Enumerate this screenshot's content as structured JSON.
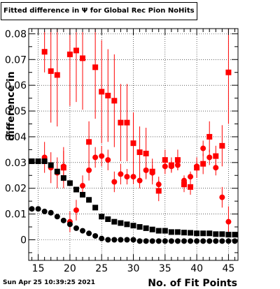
{
  "title": "Fitted difference in Ψ for Global Rec Pion NoHits",
  "timestamp": "Sun Apr 25 10:39:25 2021",
  "chart_data": {
    "type": "scatter",
    "title": "Fitted difference in Ψ for Global Rec Pion NoHits",
    "xlabel": "No. of Fit Points",
    "ylabel": "difference in",
    "xlim": [
      13.5,
      46.5
    ],
    "ylim": [
      -0.008,
      0.082
    ],
    "grid": true,
    "x_ticks": [
      15,
      20,
      25,
      30,
      35,
      40,
      45
    ],
    "y_ticks": [
      0,
      0.01,
      0.02,
      0.03,
      0.04,
      0.05,
      0.06,
      0.07,
      0.08
    ],
    "y_tick_labels": [
      "0",
      "0.01",
      "0.02",
      "0.03",
      "0.04",
      "0.05",
      "0.06",
      "0.07",
      "0.08"
    ],
    "colors": {
      "red": "#ff0000",
      "black": "#000000"
    },
    "series": [
      {
        "marker": "square",
        "color": "#ff0000",
        "x": [
          16,
          17,
          18,
          19,
          20,
          21,
          22,
          23,
          24,
          25,
          26,
          27,
          28,
          29,
          30,
          31,
          32,
          33,
          34,
          35,
          36,
          37,
          38,
          39,
          40,
          41,
          42,
          43,
          44,
          45
        ],
        "y": [
          0.073,
          0.0655,
          0.064,
          0.028,
          0.072,
          0.0735,
          0.0705,
          0.038,
          0.067,
          0.0575,
          0.056,
          0.054,
          0.0455,
          0.0455,
          0.0375,
          0.034,
          0.0335,
          0.0265,
          0.019,
          0.031,
          0.029,
          0.031,
          0.0215,
          0.0205,
          0.028,
          0.0295,
          0.04,
          0.0325,
          0.0365,
          0.065
        ],
        "err": [
          0.008,
          0.02,
          0.02,
          0.008,
          0.02,
          0.02,
          0.02,
          0.008,
          0.02,
          0.02,
          0.018,
          0.018,
          0.015,
          0.015,
          0.012,
          0.01,
          0.01,
          0.005,
          0.004,
          0.004,
          0.003,
          0.004,
          0.003,
          0.003,
          0.004,
          0.004,
          0.006,
          0.004,
          0.008,
          0.02
        ]
      },
      {
        "marker": "circle",
        "color": "#ff0000",
        "x": [
          16,
          17,
          18,
          19,
          20,
          21,
          22,
          23,
          24,
          25,
          26,
          27,
          28,
          29,
          30,
          31,
          32,
          33,
          34,
          35,
          36,
          37,
          38,
          39,
          40,
          41,
          42,
          43,
          44,
          45
        ],
        "y": [
          0.032,
          0.028,
          0.026,
          0.0285,
          0.007,
          0.0115,
          0.021,
          0.027,
          0.032,
          0.0325,
          0.031,
          0.0225,
          0.0255,
          0.0245,
          0.0245,
          0.023,
          0.027,
          0.026,
          0.0215,
          0.0285,
          0.0285,
          0.029,
          0.023,
          0.0245,
          0.0285,
          0.0355,
          0.032,
          0.028,
          0.0165,
          0.007
        ],
        "err": [
          0.006,
          0.006,
          0.006,
          0.006,
          0.004,
          0.004,
          0.004,
          0.004,
          0.004,
          0.004,
          0.004,
          0.004,
          0.004,
          0.003,
          0.003,
          0.003,
          0.003,
          0.003,
          0.003,
          0.003,
          0.002,
          0.002,
          0.002,
          0.002,
          0.002,
          0.003,
          0.003,
          0.003,
          0.004,
          0.006
        ]
      },
      {
        "marker": "square",
        "color": "#000000",
        "x": [
          14,
          15,
          16,
          17,
          18,
          19,
          20,
          21,
          22,
          23,
          24,
          25,
          26,
          27,
          28,
          29,
          30,
          31,
          32,
          33,
          34,
          35,
          36,
          37,
          38,
          39,
          40,
          41,
          42,
          43,
          44,
          45,
          46
        ],
        "y": [
          0.0305,
          0.0305,
          0.0305,
          0.029,
          0.0265,
          0.024,
          0.022,
          0.0195,
          0.0175,
          0.0155,
          0.0125,
          0.009,
          0.008,
          0.007,
          0.0065,
          0.006,
          0.0055,
          0.005,
          0.0045,
          0.004,
          0.0035,
          0.0035,
          0.003,
          0.003,
          0.0028,
          0.0027,
          0.0025,
          0.0025,
          0.0025,
          0.0022,
          0.0022,
          0.002,
          0.002
        ]
      },
      {
        "marker": "circle",
        "color": "#000000",
        "x": [
          14,
          15,
          16,
          17,
          18,
          19,
          20,
          21,
          22,
          23,
          24,
          25,
          26,
          27,
          28,
          29,
          30,
          31,
          32,
          33,
          34,
          35,
          36,
          37,
          38,
          39,
          40,
          41,
          42,
          43,
          44,
          45,
          46
        ],
        "y": [
          0.012,
          0.012,
          0.011,
          0.0105,
          0.009,
          0.0075,
          0.006,
          0.0045,
          0.0035,
          0.0025,
          0.0015,
          0.0005,
          0,
          0,
          0,
          0,
          0,
          -0.0005,
          -0.0005,
          -0.0005,
          -0.0005,
          -0.0005,
          -0.0005,
          -0.0005,
          -0.0005,
          -0.0005,
          -0.0005,
          -0.0005,
          -0.0005,
          -0.0005,
          -0.0005,
          -0.0005,
          -0.0005
        ]
      }
    ]
  }
}
